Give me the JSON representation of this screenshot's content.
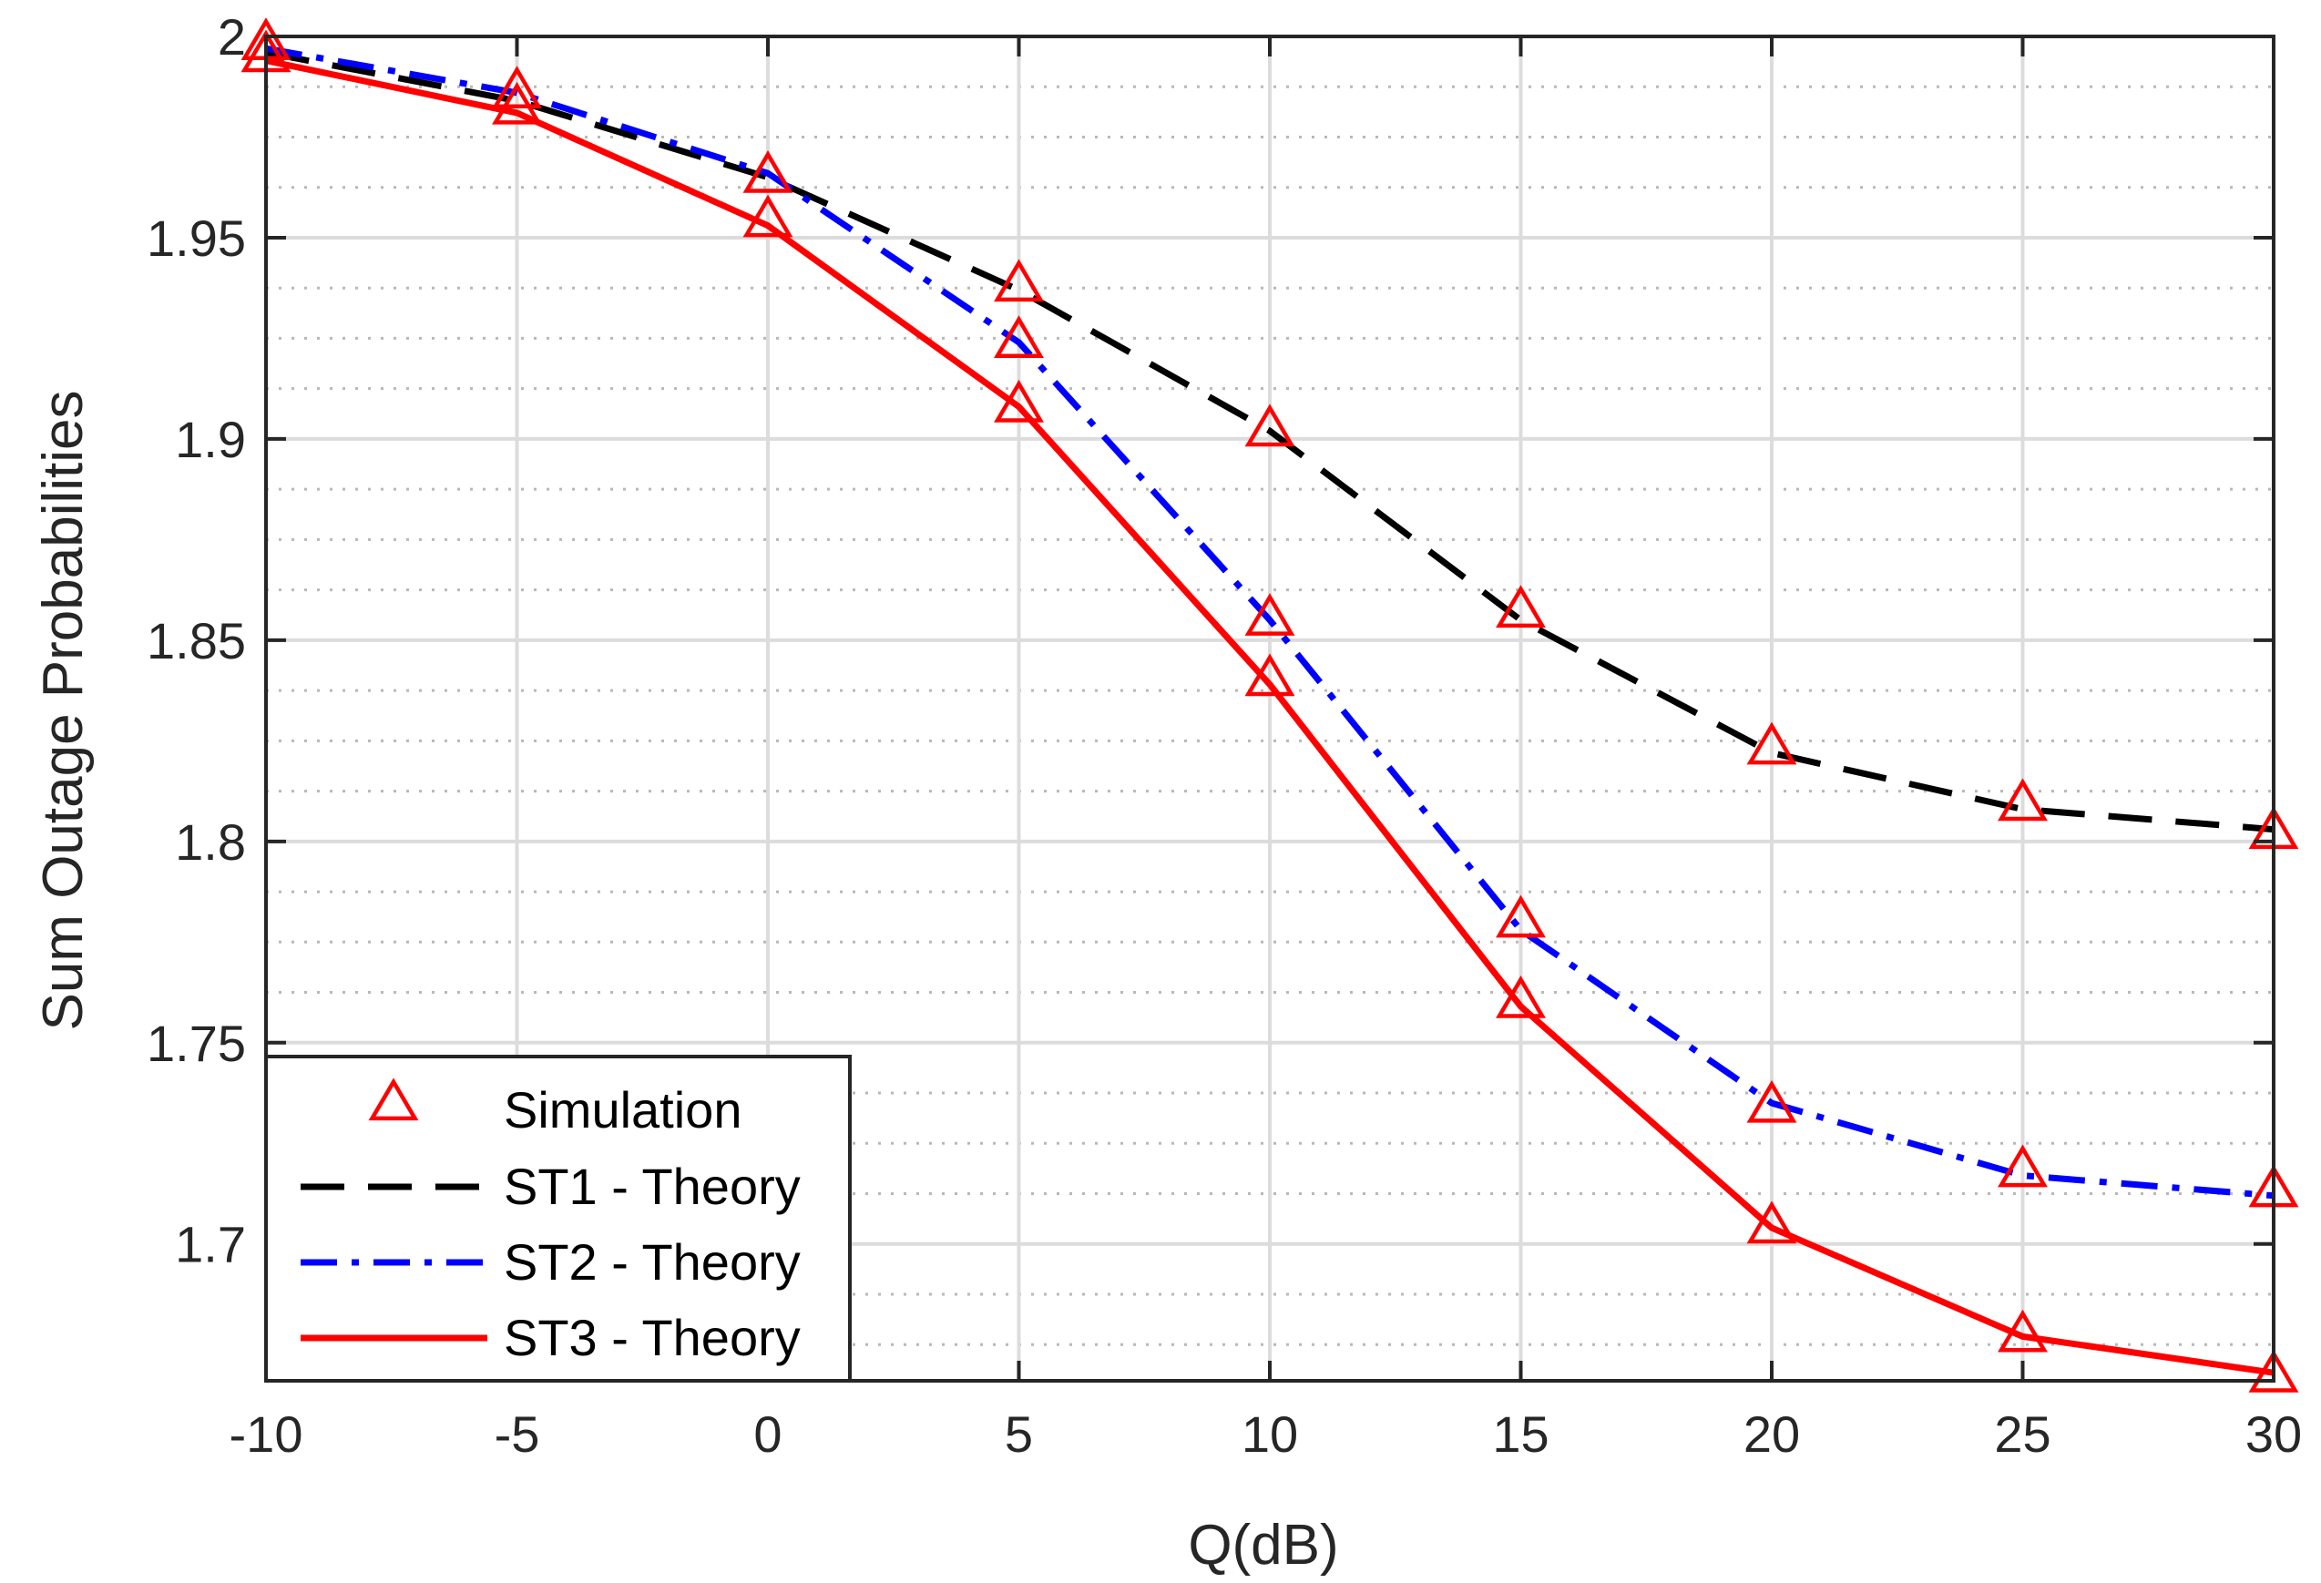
{
  "chart_data": {
    "type": "line",
    "title": "",
    "xlabel": "Q(dB)",
    "ylabel": "Sum Outage Probabilities",
    "xlim": [
      -10,
      30
    ],
    "ylim": [
      1.666,
      2.0
    ],
    "xticks": [
      -10,
      -5,
      0,
      5,
      10,
      15,
      20,
      25,
      30
    ],
    "xtick_labels": [
      "-10",
      "-5",
      "0",
      "5",
      "10",
      "15",
      "20",
      "25",
      "30"
    ],
    "yticks": [
      1.7,
      1.75,
      1.8,
      1.85,
      1.9,
      1.95,
      2.0
    ],
    "ytick_labels": [
      "1.7",
      "1.75",
      "1.8",
      "1.85",
      "1.9",
      "1.95",
      "2"
    ],
    "yminor_step": 0.0125,
    "grid": true,
    "legend_position": "bottom-left",
    "x": [
      -10,
      -5,
      0,
      5,
      10,
      15,
      20,
      25,
      30
    ],
    "series": [
      {
        "name": "ST1 - Theory",
        "style": "dashed",
        "color": "#000000",
        "values": [
          1.996,
          1.984,
          1.965,
          1.937,
          1.902,
          1.855,
          1.822,
          1.808,
          1.803
        ]
      },
      {
        "name": "ST2 - Theory",
        "style": "dash-dot",
        "color": "#0000ff",
        "values": [
          1.997,
          1.986,
          1.966,
          1.924,
          1.855,
          1.778,
          1.735,
          1.717,
          1.712
        ]
      },
      {
        "name": "ST3 - Theory",
        "style": "solid",
        "color": "#ff0000",
        "values": [
          1.994,
          1.981,
          1.953,
          1.908,
          1.839,
          1.759,
          1.704,
          1.677,
          1.668
        ]
      }
    ],
    "simulation": {
      "name": "Simulation",
      "marker": "triangle",
      "color": "#ff0000",
      "points": [
        {
          "x": -10,
          "y": 1.998
        },
        {
          "x": -10,
          "y": 1.995
        },
        {
          "x": -5,
          "y": 1.986
        },
        {
          "x": -5,
          "y": 1.982
        },
        {
          "x": 0,
          "y": 1.965
        },
        {
          "x": 0,
          "y": 1.954
        },
        {
          "x": 5,
          "y": 1.938
        },
        {
          "x": 5,
          "y": 1.924
        },
        {
          "x": 5,
          "y": 1.908
        },
        {
          "x": 10,
          "y": 1.902
        },
        {
          "x": 10,
          "y": 1.855
        },
        {
          "x": 10,
          "y": 1.84
        },
        {
          "x": 15,
          "y": 1.857
        },
        {
          "x": 15,
          "y": 1.78
        },
        {
          "x": 15,
          "y": 1.76
        },
        {
          "x": 20,
          "y": 1.823
        },
        {
          "x": 20,
          "y": 1.734
        },
        {
          "x": 20,
          "y": 1.704
        },
        {
          "x": 25,
          "y": 1.809
        },
        {
          "x": 25,
          "y": 1.718
        },
        {
          "x": 25,
          "y": 1.677
        },
        {
          "x": 30,
          "y": 1.802
        },
        {
          "x": 30,
          "y": 1.713
        },
        {
          "x": 30,
          "y": 1.667
        }
      ]
    },
    "legend": [
      "Simulation",
      "ST1 - Theory",
      "ST2 - Theory",
      "ST3 - Theory"
    ]
  }
}
